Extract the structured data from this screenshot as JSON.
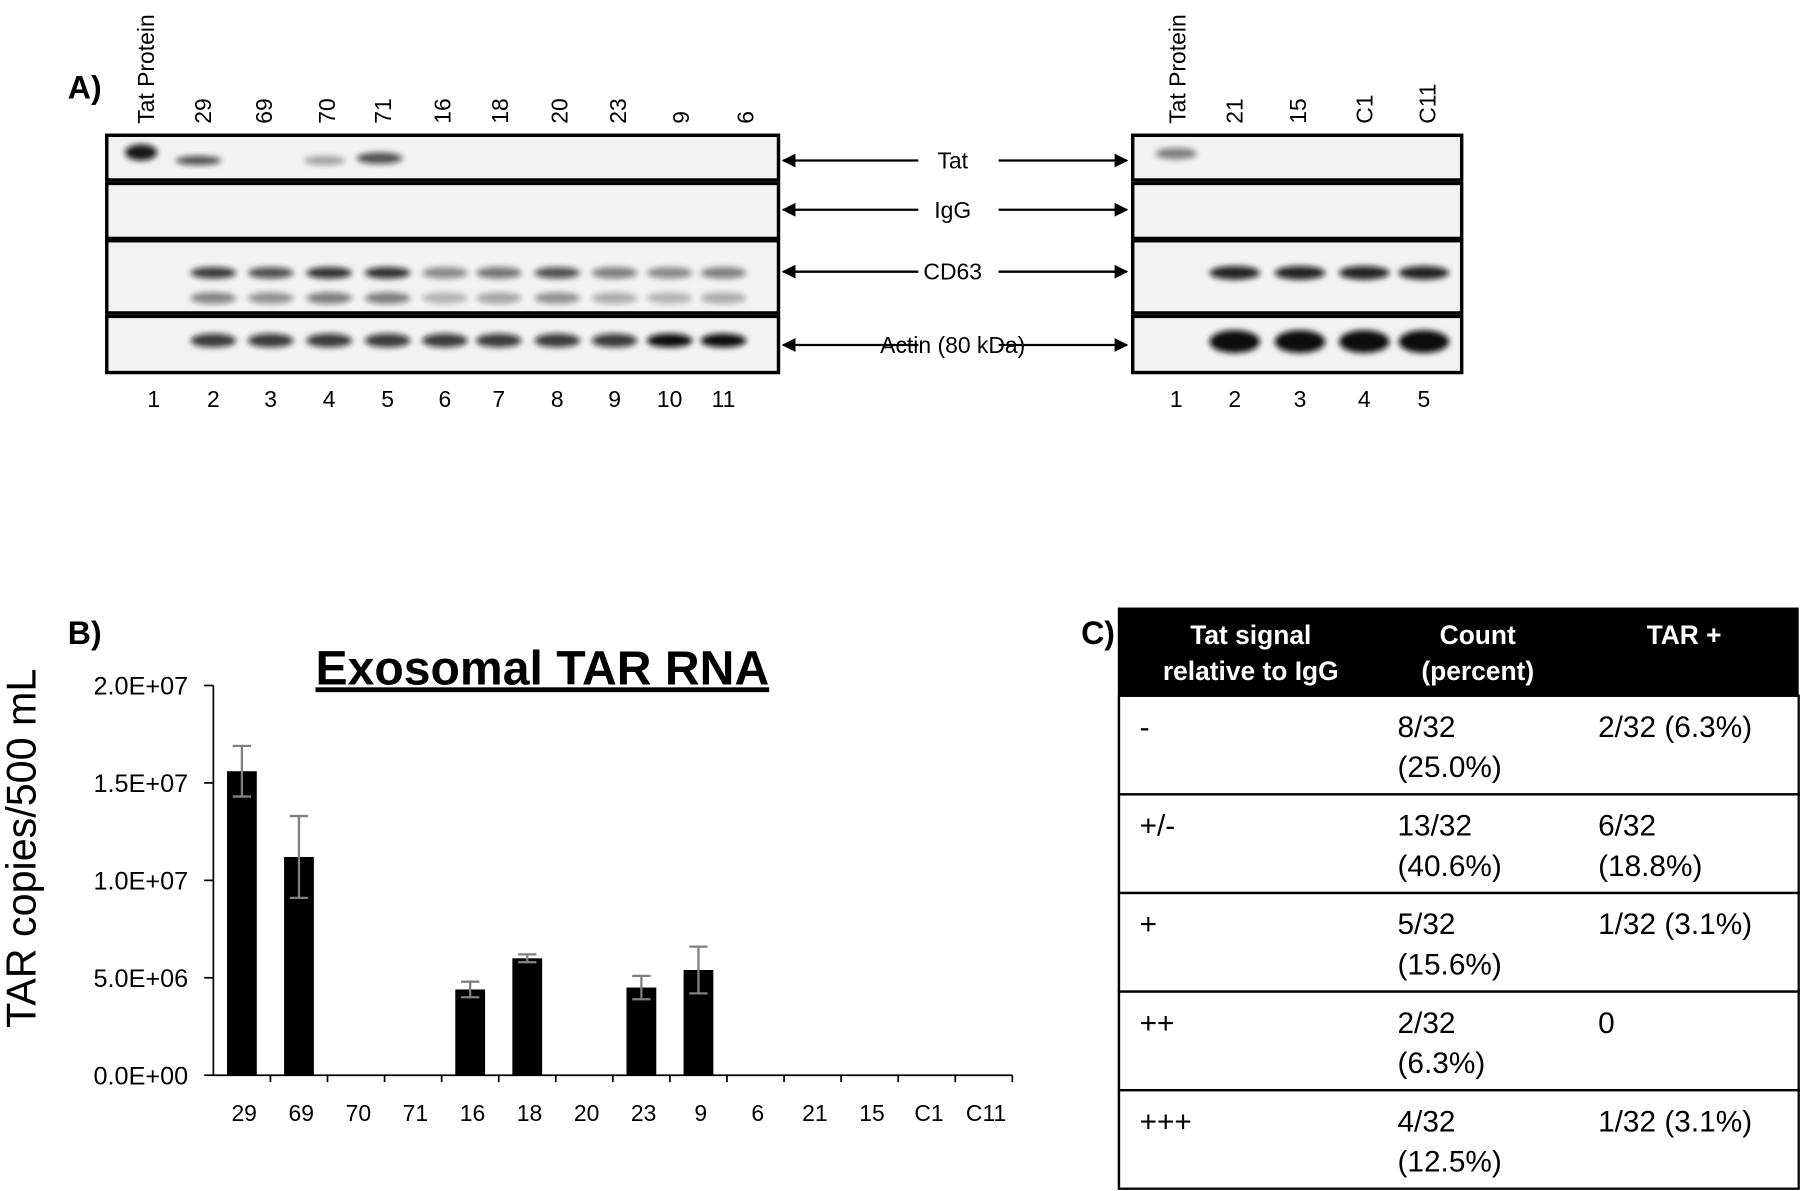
{
  "panel_a": {
    "label": "A)",
    "left": {
      "lanes": [
        "Tat Protein",
        "29",
        "69",
        "70",
        "71",
        "16",
        "18",
        "20",
        "23",
        "9",
        "6"
      ],
      "numbers": [
        "1",
        "2",
        "3",
        "4",
        "5",
        "6",
        "7",
        "8",
        "9",
        "10",
        "11"
      ]
    },
    "right": {
      "lanes": [
        "Tat Protein",
        "21",
        "15",
        "C1",
        "C11"
      ],
      "numbers": [
        "1",
        "2",
        "3",
        "4",
        "5"
      ]
    },
    "markers": [
      "Tat",
      "IgG",
      "CD63",
      "Actin (80 kDa)"
    ]
  },
  "chart_data": {
    "type": "bar",
    "label": "B)",
    "title": "Exosomal TAR RNA",
    "y_label": "TAR copies/500 mL",
    "categories": [
      "29",
      "69",
      "70",
      "71",
      "16",
      "18",
      "20",
      "23",
      "9",
      "6",
      "21",
      "15",
      "C1",
      "C11"
    ],
    "values": [
      15600000,
      11200000,
      0,
      0,
      4400000,
      6000000,
      0,
      4500000,
      5400000,
      0,
      0,
      0,
      0,
      0
    ],
    "errors": [
      1300000,
      2100000,
      0,
      0,
      400000,
      200000,
      0,
      600000,
      1200000,
      0,
      0,
      0,
      0,
      0
    ],
    "color": "#000000",
    "error_color": "#808080",
    "ylim": [
      0,
      20000000
    ],
    "yticks": [
      {
        "value": 0,
        "label": "0.0E+00"
      },
      {
        "value": 5000000,
        "label": "5.0E+06"
      },
      {
        "value": 10000000,
        "label": "1.0E+07"
      },
      {
        "value": 15000000,
        "label": "1.5E+07"
      },
      {
        "value": 20000000,
        "label": "2.0E+07"
      }
    ]
  },
  "table": {
    "label": "C)",
    "header": [
      [
        "Tat signal",
        "relative to IgG"
      ],
      [
        "Count",
        "(percent)"
      ],
      [
        "TAR +"
      ]
    ],
    "rows": [
      [
        [
          "-"
        ],
        [
          "8/32",
          "(25.0%)"
        ],
        [
          "2/32 (6.3%)"
        ]
      ],
      [
        [
          "+/-"
        ],
        [
          "13/32",
          "(40.6%)"
        ],
        [
          "6/32",
          "(18.8%)"
        ]
      ],
      [
        [
          "+"
        ],
        [
          "5/32",
          "(15.6%)"
        ],
        [
          "1/32 (3.1%)"
        ]
      ],
      [
        [
          "++"
        ],
        [
          "2/32",
          "(6.3%)"
        ],
        [
          "0"
        ]
      ],
      [
        [
          "+++"
        ],
        [
          "4/32",
          "(12.5%)"
        ],
        [
          "1/32 (3.1%)"
        ]
      ]
    ]
  }
}
